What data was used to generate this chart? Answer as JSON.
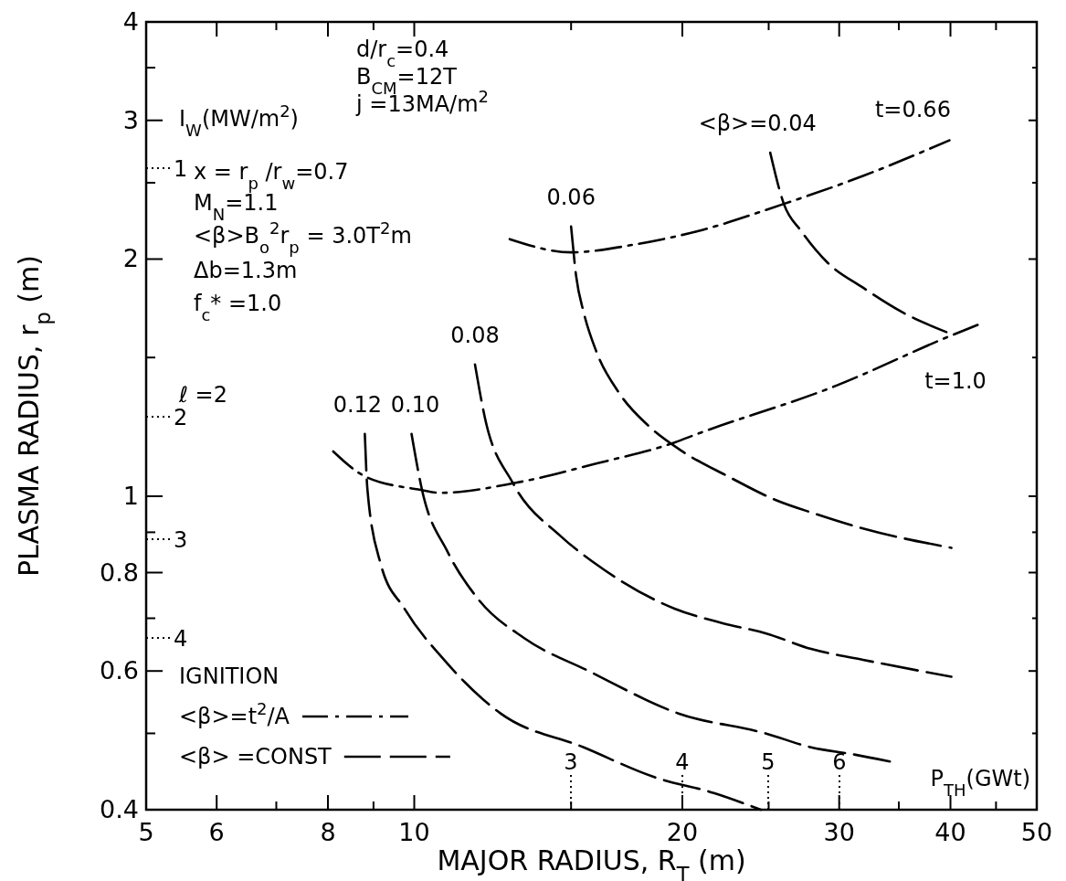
{
  "chart_data": {
    "type": "line",
    "xlabel": "MAJOR  RADIUS, R$_{T}$ (m)",
    "ylabel": "PLASMA  RADIUS, r$_{p}$ (m)",
    "log": "xy",
    "xlim": [
      5,
      50
    ],
    "ylim": [
      0.4,
      4
    ],
    "xticks": [
      5,
      6,
      {
        "value": 7,
        "label": null
      },
      8,
      {
        "value": 9,
        "label": null
      },
      10,
      {
        "value": 15,
        "label": null
      },
      20,
      {
        "value": 25,
        "label": null
      },
      30,
      {
        "value": 35,
        "label": null
      },
      40,
      {
        "value": 45,
        "label": null
      },
      50
    ],
    "yticks": [
      0.4,
      {
        "value": 0.5,
        "label": null
      },
      0.6,
      {
        "value": 0.7,
        "label": null
      },
      0.8,
      {
        "value": 0.9,
        "label": null
      },
      1,
      {
        "value": 1.5,
        "label": null
      },
      2,
      {
        "value": 2.5,
        "label": null
      },
      3,
      {
        "value": 3.5,
        "label": null
      },
      4
    ],
    "series": [
      {
        "name": "t=0.66",
        "color": "#000000",
        "line_style": "dashdot",
        "x": [
          12.8,
          15.0,
          17.8,
          20.8,
          26.0,
          31.9,
          39.9
        ],
        "values": [
          2.12,
          2.04,
          2.09,
          2.17,
          2.35,
          2.55,
          2.83
        ]
      },
      {
        "name": "t=1.0",
        "color": "#000000",
        "line_style": "dashdot",
        "x": [
          8.11,
          8.8,
          10.1,
          10.7,
          13.0,
          16.0,
          19.6,
          20.8,
          29.7,
          40.1,
          43.5
        ],
        "values": [
          1.14,
          1.06,
          1.02,
          1.01,
          1.04,
          1.1,
          1.17,
          1.2,
          1.38,
          1.6,
          1.66
        ]
      },
      {
        "name": "<β>=0.04",
        "color": "#000000",
        "line_style": "dashed",
        "x": [
          25.1,
          26.0,
          27.2,
          29.1,
          31.9,
          35.4,
          39.9
        ],
        "values": [
          2.73,
          2.35,
          2.17,
          1.98,
          1.84,
          1.71,
          1.61
        ]
      },
      {
        "name": "0.06",
        "color": "#000000",
        "line_style": "dashed",
        "x": [
          15.0,
          15.2,
          15.5,
          16.0,
          17.0,
          18.3,
          20.0,
          22.5,
          25.4,
          28.2,
          31.9,
          40.1
        ],
        "values": [
          2.2,
          1.9,
          1.71,
          1.53,
          1.35,
          1.23,
          1.14,
          1.06,
          0.99,
          0.95,
          0.91,
          0.86
        ]
      },
      {
        "name": "0.08",
        "color": "#000000",
        "line_style": "dashed",
        "x": [
          11.7,
          12.0,
          12.9,
          14.6,
          16.0,
          19.6,
          22.2,
          24.8,
          27.9,
          31.9,
          40.1
        ],
        "values": [
          1.47,
          1.26,
          1.04,
          0.89,
          0.82,
          0.72,
          0.69,
          0.67,
          0.64,
          0.62,
          0.59
        ]
      },
      {
        "name": "0.10",
        "color": "#000000",
        "line_style": "dashed",
        "x": [
          9.93,
          10.2,
          10.9,
          11.8,
          13.3,
          15.7,
          19.8,
          24.8,
          27.9,
          31.2,
          34.4
        ],
        "values": [
          1.2,
          1.02,
          0.85,
          0.74,
          0.66,
          0.6,
          0.53,
          0.5,
          0.48,
          0.47,
          0.46
        ]
      },
      {
        "name": "0.12",
        "color": "#000000",
        "line_style": "dashed",
        "x": [
          8.8,
          8.86,
          9.17,
          9.75,
          10.8,
          12.5,
          15.5,
          18.6,
          21.7,
          24.5
        ],
        "values": [
          1.2,
          1.02,
          0.82,
          0.72,
          0.62,
          0.53,
          0.48,
          0.44,
          0.42,
          0.4
        ]
      }
    ],
    "annotations": [
      "I$_{W}$(MW/m$^{2}$)",
      "d/r$_{c}$=0.4",
      "B$_{CM}$=12T",
      "j =13MA/m$^{2}$",
      "x = r$_{p}$ /r$_{w}$=0.7",
      "M$_{N}$=1.1",
      "<β>B$_{o}$$^{2}$r$_{p}$ = 3.0T$^{2}$m",
      "Δb=1.3m",
      "f$_{c}$* =1.0",
      "ℓ =2",
      "IGNITION",
      "<β>=t$^{2}$/A",
      "<β> =CONST",
      "P$_{TH}$(GWt)",
      "3",
      "4",
      "5",
      "6",
      "1",
      "2",
      "3",
      "4"
    ]
  }
}
